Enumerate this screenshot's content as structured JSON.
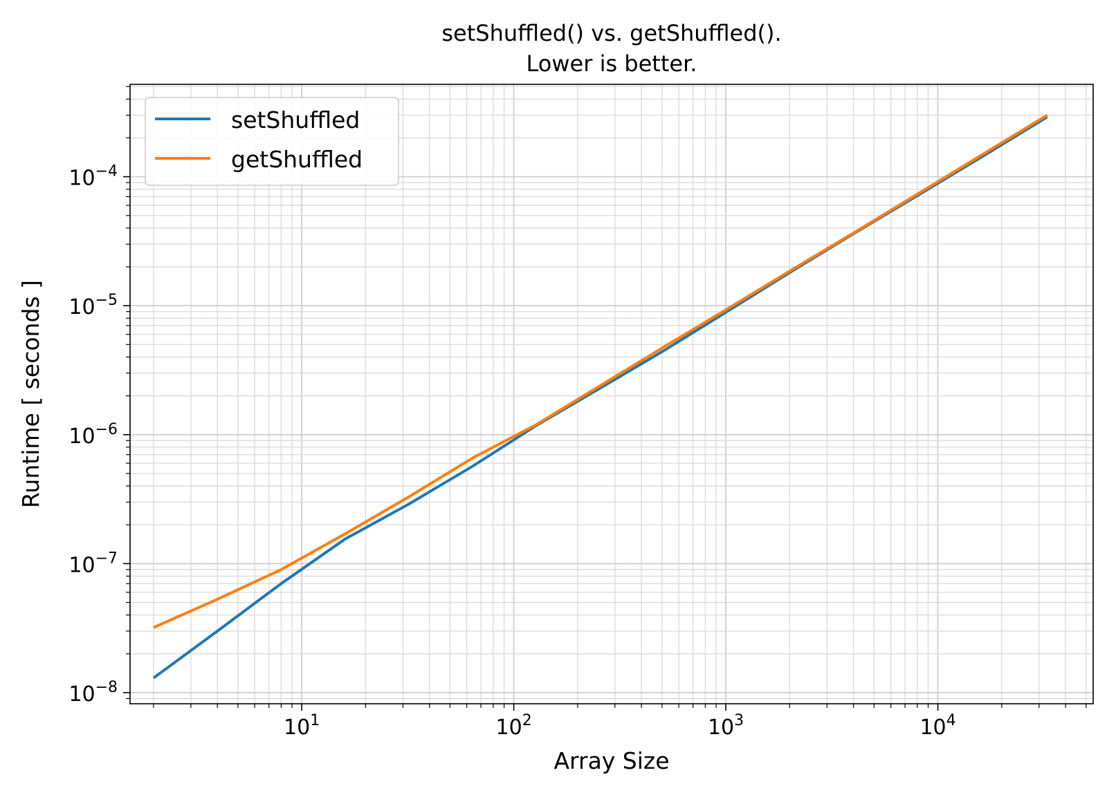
{
  "chart_data": {
    "type": "line",
    "title": "setShuffled() vs. getShuffled().",
    "subtitle": "Lower is better.",
    "xlabel": "Array Size",
    "ylabel": "Runtime [ seconds ]",
    "xscale": "log",
    "yscale": "log",
    "xlim": [
      1.55,
      54000
    ],
    "ylim": [
      8.2e-09,
      0.00052
    ],
    "grid": "on (major and minor)",
    "legend_position": "top-left",
    "x_ticks": [
      {
        "value": 10,
        "base": "10",
        "exp": "1"
      },
      {
        "value": 100,
        "base": "10",
        "exp": "2"
      },
      {
        "value": 1000,
        "base": "10",
        "exp": "3"
      },
      {
        "value": 10000,
        "base": "10",
        "exp": "4"
      }
    ],
    "y_ticks": [
      {
        "value": 1e-08,
        "base": "10",
        "exp": "−8"
      },
      {
        "value": 1e-07,
        "base": "10",
        "exp": "−7"
      },
      {
        "value": 1e-06,
        "base": "10",
        "exp": "−6"
      },
      {
        "value": 1e-05,
        "base": "10",
        "exp": "−5"
      },
      {
        "value": 0.0001,
        "base": "10",
        "exp": "−4"
      }
    ],
    "x": [
      2,
      4,
      8,
      16,
      32,
      64,
      128,
      256,
      512,
      1024,
      2048,
      4096,
      8192,
      16384,
      32768
    ],
    "series": [
      {
        "name": "setShuffled",
        "color": "#1f77b4",
        "values": [
          1.3e-08,
          3e-08,
          7e-08,
          1.55e-07,
          2.9e-07,
          5.7e-07,
          1.18e-06,
          2.3e-06,
          4.5e-06,
          9.1e-06,
          1.85e-05,
          3.7e-05,
          7.3e-05,
          0.000145,
          0.00029
        ]
      },
      {
        "name": "getShuffled",
        "color": "#ff7f0e",
        "values": [
          3.2e-08,
          5.3e-08,
          9e-08,
          1.7e-07,
          3.3e-07,
          6.6e-07,
          1.2e-06,
          2.4e-06,
          4.8e-06,
          9.5e-06,
          1.9e-05,
          3.75e-05,
          7.5e-05,
          0.00015,
          0.0003
        ]
      }
    ]
  }
}
